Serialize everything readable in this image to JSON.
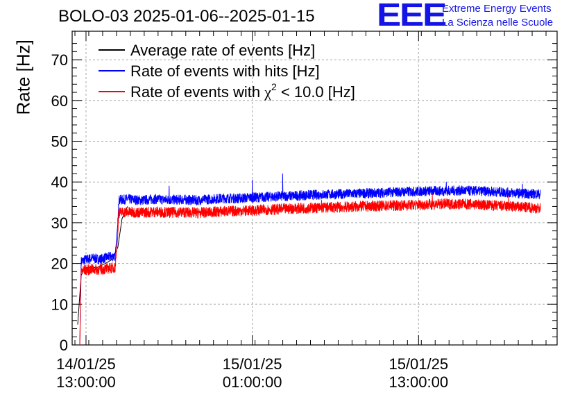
{
  "header": {
    "title": "BOLO-03 2025-01-06--2025-01-15",
    "logo_text": "EEE",
    "logo_line1": "Extreme Energy Events",
    "logo_line2": "La Scienza nelle Scuole"
  },
  "colors": {
    "average": "#000000",
    "hits": "#0000ff",
    "chi2": "#ff0000",
    "logo": "#1414e6",
    "grid": "#aaaaaa"
  },
  "chart_data": {
    "type": "line",
    "title": "BOLO-03 2025-01-06--2025-01-15",
    "ylabel": "Rate [Hz]",
    "xlabel": "",
    "ylim": [
      0,
      77
    ],
    "yticks": [
      0,
      10,
      20,
      30,
      40,
      50,
      60,
      70
    ],
    "xlim_hours": [
      -1,
      34
    ],
    "xticks": [
      {
        "hours": 0,
        "line1": "14/01/25",
        "line2": "13:00:00"
      },
      {
        "hours": 12,
        "line1": "15/01/25",
        "line2": "01:00:00"
      },
      {
        "hours": 24,
        "line1": "15/01/25",
        "line2": "13:00:00"
      }
    ],
    "grid": true,
    "legend": {
      "placement": "top-left",
      "entries": [
        {
          "label": "Average rate of events [Hz]",
          "series": "average"
        },
        {
          "label": "Rate of events with hits [Hz]",
          "series": "hits"
        },
        {
          "label_prefix": "Rate of events with ",
          "label_chi": "χ",
          "label_sup": "2",
          "label_suffix": " < 10.0 [Hz]",
          "series": "chi2"
        }
      ]
    },
    "series": [
      {
        "name": "Average rate of events [Hz]",
        "key": "average",
        "x_hours": [
          -0.6,
          -0.35,
          -0.1,
          0.3,
          0.8,
          1.4,
          1.9,
          2.3,
          2.6,
          3.0
        ],
        "values": [
          5,
          17,
          19,
          19,
          19,
          20,
          21,
          24,
          31,
          34
        ]
      },
      {
        "name": "Rate of events with hits [Hz]",
        "key": "hits",
        "x_hours": [
          -0.45,
          -0.35,
          0.0,
          0.5,
          1.0,
          1.5,
          2.0,
          2.1,
          2.3,
          2.35,
          3.0,
          4.0,
          5.0,
          6.0,
          7.0,
          8.0,
          9.0,
          10.0,
          11.0,
          12.0,
          13.0,
          14.0,
          15.0,
          16.0,
          17.0,
          18.0,
          19.0,
          20.0,
          21.0,
          22.0,
          23.0,
          24.0,
          25.0,
          26.0,
          27.0,
          28.0,
          29.0,
          30.0,
          31.0,
          32.0,
          32.8
        ],
        "values": [
          0,
          20.5,
          21,
          21.3,
          21,
          21.5,
          21.8,
          21.5,
          30,
          35.5,
          35.8,
          35.5,
          35.8,
          35.6,
          35.7,
          35.5,
          35.8,
          36,
          36,
          36.2,
          36.3,
          36.5,
          36.6,
          36.8,
          36.9,
          37,
          37.1,
          37.2,
          37.3,
          37.5,
          37.6,
          37.7,
          37.8,
          37.8,
          37.9,
          37.8,
          37.7,
          37.5,
          37.3,
          37.1,
          37
        ],
        "noise": 1.2,
        "spikes": [
          [
            6.0,
            39
          ],
          [
            14.2,
            42
          ],
          [
            12.0,
            40.5
          ],
          [
            26.0,
            40
          ],
          [
            31.5,
            39.5
          ]
        ]
      },
      {
        "name": "Rate of events with chi2 < 10.0 [Hz]",
        "key": "chi2",
        "x_hours": [
          -0.45,
          -0.35,
          0.0,
          0.5,
          1.0,
          1.5,
          2.0,
          2.1,
          2.3,
          2.35,
          3.0,
          4.0,
          5.0,
          6.0,
          7.0,
          8.0,
          9.0,
          10.0,
          11.0,
          12.0,
          13.0,
          14.0,
          15.0,
          16.0,
          17.0,
          18.0,
          19.0,
          20.0,
          21.0,
          22.0,
          23.0,
          24.0,
          25.0,
          26.0,
          27.0,
          28.0,
          29.0,
          30.0,
          31.0,
          32.0,
          32.8
        ],
        "values": [
          0,
          18.2,
          18.4,
          18.6,
          18.5,
          18.7,
          19,
          18.8,
          27,
          32.5,
          32.6,
          32.5,
          32.7,
          32.5,
          32.6,
          32.4,
          32.6,
          32.8,
          32.9,
          33.0,
          33.2,
          33.3,
          33.5,
          33.6,
          33.7,
          33.8,
          33.9,
          34.0,
          34.1,
          34.2,
          34.3,
          34.4,
          34.5,
          34.6,
          34.6,
          34.5,
          34.3,
          34.1,
          33.9,
          33.7,
          33.5
        ],
        "noise": 1.3,
        "spikes": [
          [
            17.0,
            35.5
          ],
          [
            25.0,
            37
          ],
          [
            30.5,
            36.5
          ]
        ]
      }
    ]
  }
}
